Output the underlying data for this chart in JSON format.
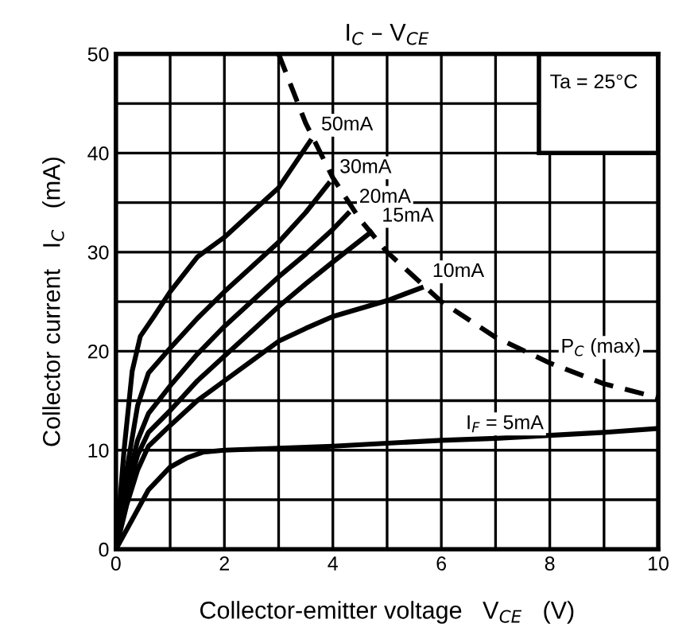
{
  "chart_data": {
    "type": "line",
    "title": "I$_{C}$ – V$_{CE}$",
    "xlabel": "Collector-emitter voltage   V$_{CE}$   (V)",
    "ylabel": "Collector current   I$_{C}$   (mA)",
    "xlim": [
      0,
      10
    ],
    "ylim": [
      0,
      50
    ],
    "xticks": [
      0,
      2,
      4,
      6,
      8,
      10
    ],
    "yticks": [
      0,
      10,
      20,
      30,
      40,
      50
    ],
    "grid": true,
    "marker": "none",
    "series": [
      {
        "color": "#000000",
        "line_style": "solid",
        "x": [
          0,
          0.15,
          0.3,
          0.45,
          0.7,
          1,
          1.5,
          2,
          2.5,
          3,
          3.58
        ],
        "values": [
          0,
          10,
          18,
          21.5,
          23.5,
          26,
          29.5,
          31.5,
          34,
          36.5,
          41.2
        ]
      },
      {
        "color": "#000000",
        "line_style": "solid",
        "x": [
          0,
          0.2,
          0.4,
          0.6,
          1,
          1.5,
          2,
          2.5,
          3,
          3.5,
          3.92
        ],
        "values": [
          0,
          8,
          14.5,
          17.8,
          20.3,
          23.3,
          26,
          28.5,
          31,
          34,
          36.9
        ]
      },
      {
        "color": "#000000",
        "line_style": "solid",
        "x": [
          0,
          0.2,
          0.4,
          0.6,
          1,
          1.5,
          2,
          2.5,
          3,
          3.5,
          4,
          4.28
        ],
        "values": [
          0,
          6.5,
          11,
          13.7,
          16.5,
          19.7,
          22.5,
          25,
          27.5,
          29.8,
          32.3,
          33.9
        ]
      },
      {
        "color": "#000000",
        "line_style": "solid",
        "x": [
          0,
          0.2,
          0.4,
          0.6,
          1,
          1.5,
          2,
          2.5,
          3,
          3.5,
          4,
          4.7
        ],
        "values": [
          0,
          5.5,
          9.5,
          11.8,
          14,
          17,
          19.5,
          22,
          24.5,
          26.8,
          29,
          32
        ]
      },
      {
        "color": "#000000",
        "line_style": "solid",
        "x": [
          0,
          0.2,
          0.4,
          0.6,
          1,
          1.5,
          2,
          2.5,
          3,
          3.5,
          4,
          4.5,
          5,
          5.63
        ],
        "values": [
          0,
          4.5,
          8,
          10.4,
          12.5,
          15,
          17,
          19,
          21,
          22.3,
          23.5,
          24.3,
          25.1,
          26.4
        ]
      },
      {
        "color": "#000000",
        "line_style": "solid",
        "x": [
          0,
          0.3,
          0.6,
          1,
          1.3,
          1.6,
          2,
          3,
          4,
          5,
          6,
          7,
          8,
          9,
          10
        ],
        "values": [
          0,
          3,
          6,
          8.3,
          9.2,
          9.8,
          10,
          10.2,
          10.4,
          10.7,
          11,
          11.2,
          11.5,
          11.8,
          12.2
        ]
      },
      {
        "color": "#000000",
        "line_style": "dashed",
        "x": [
          3,
          3.5,
          4,
          4.5,
          5,
          6,
          7,
          8,
          9,
          10
        ],
        "values": [
          50,
          43,
          37.5,
          33.3,
          30,
          25,
          21.4,
          18.8,
          16.7,
          15.3
        ]
      }
    ],
    "annotations": [
      {
        "text": "50mA",
        "x": 3.58,
        "y": 41.2
      },
      {
        "text": "30mA",
        "x": 3.92,
        "y": 36.9
      },
      {
        "text": "20mA",
        "x": 4.28,
        "y": 33.9
      },
      {
        "text": "15mA",
        "x": 4.7,
        "y": 32
      },
      {
        "text": "10mA",
        "x": 5.63,
        "y": 26.4
      },
      {
        "text": "P$_{C}$ (max)",
        "x": 8,
        "y": 18.75
      },
      {
        "text": "I$_{F}$ = 5mA",
        "x": 6.25,
        "y": 11.05
      },
      "Ta = 25°C"
    ]
  }
}
